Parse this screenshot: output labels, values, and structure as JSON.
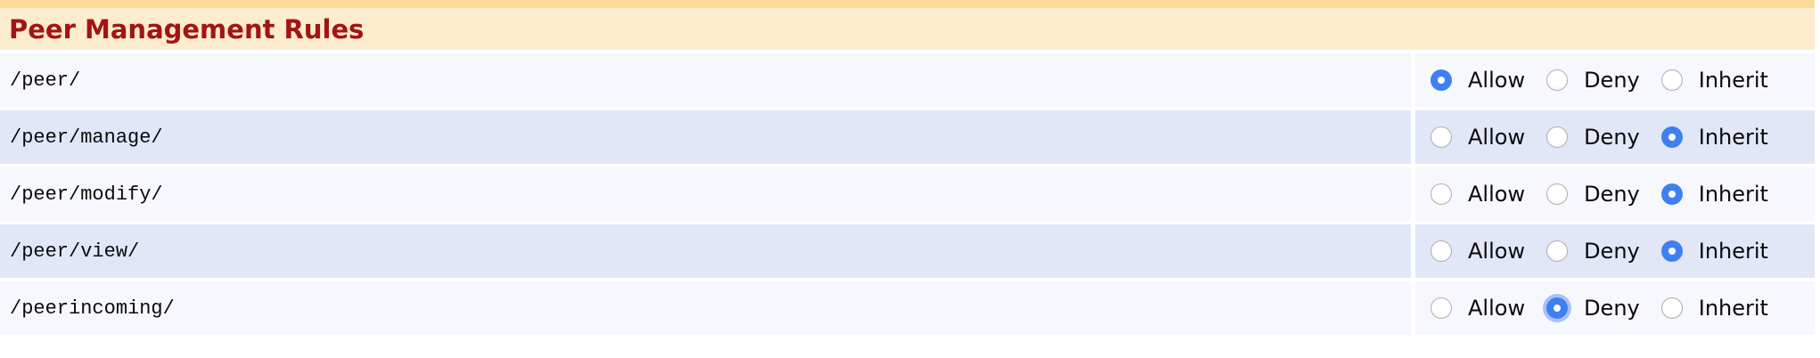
{
  "header": {
    "title": "Peer Management Rules"
  },
  "options": [
    "Allow",
    "Deny",
    "Inherit"
  ],
  "rows": [
    {
      "path": "/peer/",
      "selected": "Allow",
      "focused": false
    },
    {
      "path": "/peer/manage/",
      "selected": "Inherit",
      "focused": false
    },
    {
      "path": "/peer/modify/",
      "selected": "Inherit",
      "focused": false
    },
    {
      "path": "/peer/view/",
      "selected": "Inherit",
      "focused": false
    },
    {
      "path": "/peerincoming/",
      "selected": "Deny",
      "focused": true
    }
  ],
  "colors": {
    "header_top_bar": "#fbd999",
    "header_background": "#fdeccd",
    "header_text": "#a31414",
    "row_light": "#f6f8fd",
    "row_lavender": "#e2e7f8",
    "radio_selected": "#3e80f0",
    "radio_focus_halo": "#6993f5",
    "body_text": "#0a0a0a"
  }
}
